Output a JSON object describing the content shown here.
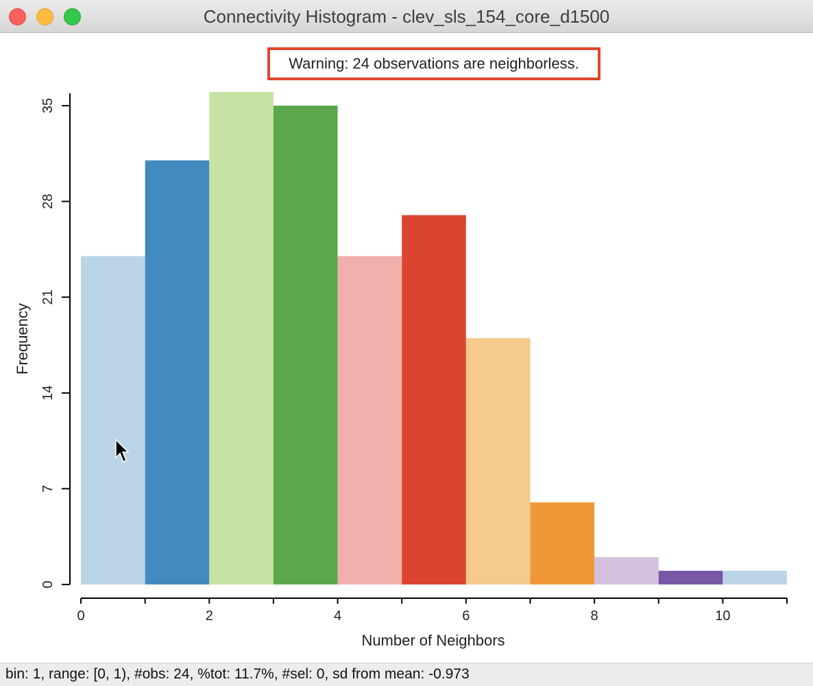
{
  "window": {
    "title": "Connectivity Histogram - clev_sls_154_core_d1500"
  },
  "warning": "Warning: 24 observations are neighborless.",
  "status_bar": "bin: 1, range: [0, 1), #obs: 24, %tot: 11.7%, #sel: 0, sd from mean: -0.973",
  "chart_data": {
    "type": "bar",
    "xlabel": "Number of Neighbors",
    "ylabel": "Frequency",
    "xlim": [
      0,
      11
    ],
    "ylim": [
      0,
      35
    ],
    "xticks": [
      0,
      2,
      4,
      6,
      8,
      10
    ],
    "yticks": [
      0,
      7,
      14,
      21,
      28,
      35
    ],
    "bins": [
      {
        "x0": 0,
        "x1": 1,
        "value": 24,
        "color": "#bad5e8"
      },
      {
        "x0": 1,
        "x1": 2,
        "value": 31,
        "color": "#438bbf"
      },
      {
        "x0": 2,
        "x1": 3,
        "value": 36,
        "color": "#c6e2a4"
      },
      {
        "x0": 3,
        "x1": 4,
        "value": 35,
        "color": "#5ba84a"
      },
      {
        "x0": 4,
        "x1": 5,
        "value": 24,
        "color": "#f0b0ab"
      },
      {
        "x0": 5,
        "x1": 6,
        "value": 27,
        "color": "#dc4432"
      },
      {
        "x0": 6,
        "x1": 7,
        "value": 18,
        "color": "#f6ca8d"
      },
      {
        "x0": 7,
        "x1": 8,
        "value": 6,
        "color": "#f09837"
      },
      {
        "x0": 8,
        "x1": 9,
        "value": 2,
        "color": "#d3c2dd"
      },
      {
        "x0": 9,
        "x1": 10,
        "value": 1,
        "color": "#7857a7"
      },
      {
        "x0": 10,
        "x1": 11,
        "value": 1,
        "color": "#bad5e8"
      }
    ]
  }
}
